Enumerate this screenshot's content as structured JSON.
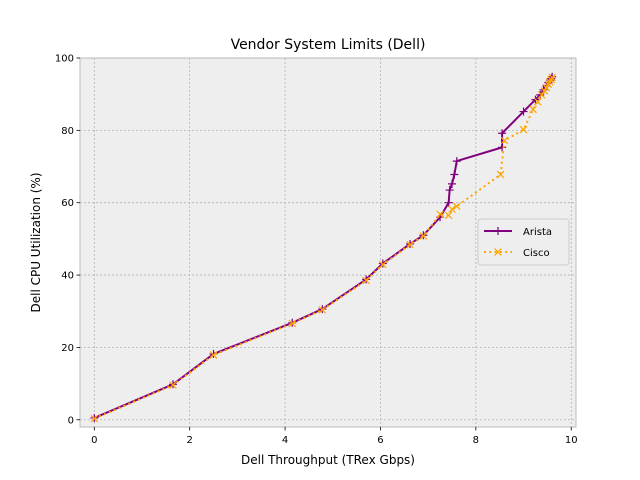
{
  "chart_data": {
    "type": "line",
    "title": "Vendor System Limits (Dell)",
    "xlabel": "Dell Throughput (TRex Gbps)",
    "ylabel": "Dell CPU Utilization (%)",
    "xlim": [
      -0.3,
      10.1
    ],
    "ylim": [
      -2,
      100
    ],
    "xticks": [
      0,
      2,
      4,
      6,
      8,
      10
    ],
    "yticks": [
      0,
      20,
      40,
      60,
      80,
      100
    ],
    "grid": true,
    "legend_position": "center-right",
    "series": [
      {
        "name": "Arista",
        "color": "#800080",
        "linestyle": "solid",
        "marker": "plus",
        "x": [
          0.0,
          1.65,
          2.5,
          4.15,
          4.78,
          5.7,
          6.05,
          6.62,
          6.9,
          7.25,
          7.43,
          7.45,
          7.5,
          7.55,
          7.6,
          8.55,
          8.55,
          9.0,
          9.25,
          9.35,
          9.42,
          9.48,
          9.52,
          9.56,
          9.58,
          9.6
        ],
        "y": [
          0.5,
          9.8,
          18.2,
          26.8,
          30.6,
          38.8,
          43.2,
          48.6,
          51.0,
          56.0,
          60.0,
          63.5,
          65.2,
          67.8,
          71.5,
          75.3,
          79.2,
          85.2,
          88.5,
          89.8,
          91.2,
          92.3,
          93.2,
          93.9,
          94.3,
          94.8
        ]
      },
      {
        "name": "Cisco",
        "color": "#ffa500",
        "linestyle": "dotted",
        "marker": "x",
        "x": [
          0.0,
          1.65,
          2.5,
          4.15,
          4.78,
          5.7,
          6.05,
          6.62,
          6.9,
          7.25,
          7.43,
          7.5,
          7.6,
          8.52,
          8.6,
          9.0,
          9.2,
          9.3,
          9.38,
          9.44,
          9.48,
          9.52,
          9.55,
          9.58,
          9.6
        ],
        "y": [
          0.3,
          9.6,
          17.9,
          26.6,
          30.4,
          38.5,
          42.9,
          48.4,
          50.8,
          56.8,
          56.5,
          58.2,
          59.0,
          67.8,
          77.2,
          80.2,
          85.8,
          87.9,
          89.8,
          90.9,
          91.8,
          92.7,
          93.4,
          94.0,
          94.6
        ]
      }
    ]
  }
}
